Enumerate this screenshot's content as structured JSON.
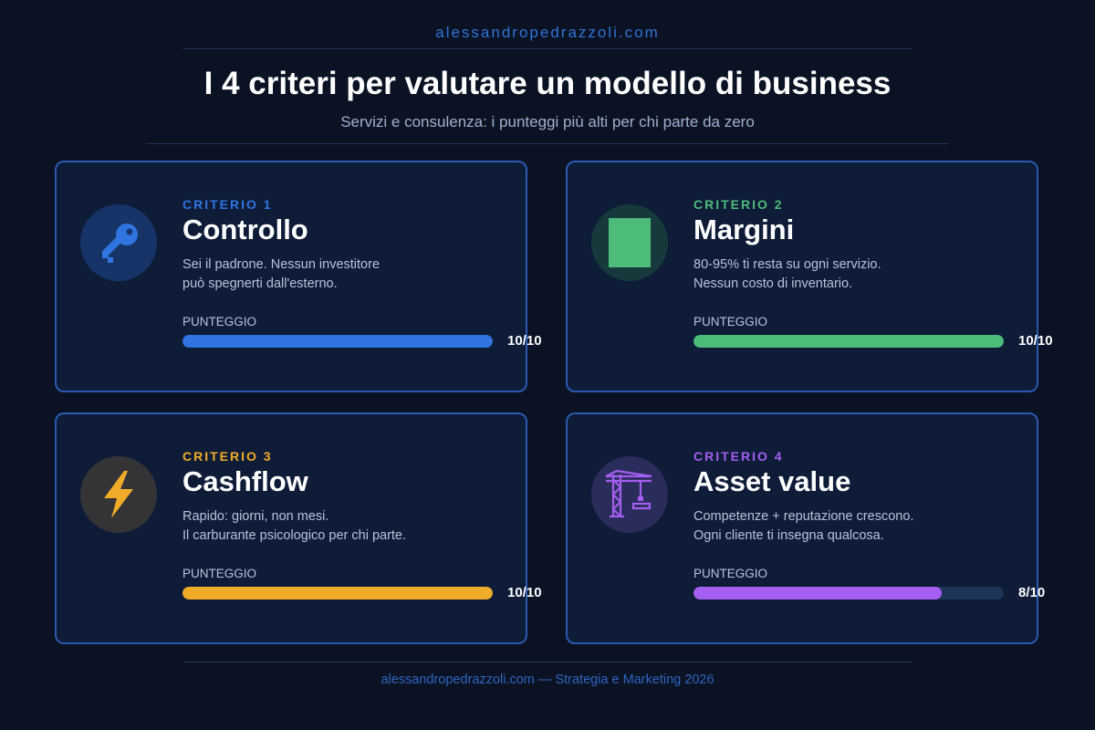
{
  "site": "alessandropedrazzoli.com",
  "title": "I 4 criteri per valutare un modello di business",
  "subtitle": "Servizi e consulenza: i punteggi più alti per chi parte da zero",
  "score_label": "PUNTEGGIO",
  "cards": [
    {
      "label": "CRITERIO 1",
      "name": "Controllo",
      "desc": [
        "Sei il padrone. Nessun investitore",
        "può spegnerti dall'esterno."
      ],
      "score_text": "10/10",
      "score_fraction": 1.0,
      "icon": "key-icon",
      "accent": "#2f74e0",
      "icon_bg": "#173468"
    },
    {
      "label": "CRITERIO 2",
      "name": "Margini",
      "desc": [
        "80-95% ti resta su ogni servizio.",
        "Nessun costo di inventario."
      ],
      "score_text": "10/10",
      "score_fraction": 1.0,
      "icon": "green-square-icon",
      "accent": "#4dbb7a",
      "icon_bg": "#163a3c"
    },
    {
      "label": "CRITERIO 3",
      "name": "Cashflow",
      "desc": [
        "Rapido: giorni, non mesi.",
        "Il carburante psicologico per chi parte."
      ],
      "score_text": "10/10",
      "score_fraction": 1.0,
      "icon": "lightning-icon",
      "accent": "#f0ac28",
      "icon_bg": "#343436"
    },
    {
      "label": "CRITERIO 4",
      "name": "Asset value",
      "desc": [
        "Competenze + reputazione crescono.",
        "Ogni cliente ti insegna qualcosa."
      ],
      "score_text": "8/10",
      "score_fraction": 0.8,
      "icon": "crane-icon",
      "accent": "#a45ef0",
      "icon_bg": "#2a2d5c"
    }
  ],
  "footer": "alessandropedrazzoli.com — Strategia e Marketing 2026"
}
